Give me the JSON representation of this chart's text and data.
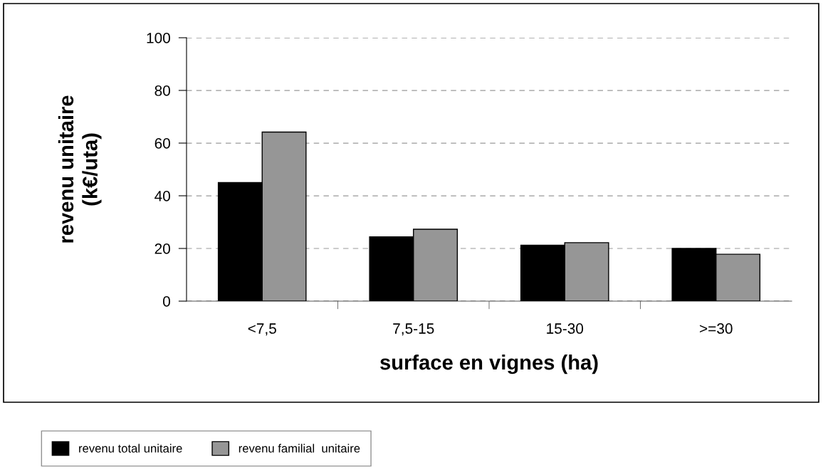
{
  "chart_data": {
    "type": "bar",
    "xlabel": "surface en vignes (ha)",
    "ylabel": "revenu unitaire\n(k€/uta)",
    "categories": [
      "<7,5",
      "7,5-15",
      "15-30",
      ">=30"
    ],
    "series": [
      {
        "name": "revenu total unitaire",
        "color": "#000000",
        "values": [
          45,
          24.4,
          21.2,
          20
        ]
      },
      {
        "name": "revenu familial  unitaire",
        "color": "#969696",
        "values": [
          64.2,
          27.3,
          22.2,
          17.8
        ]
      }
    ],
    "ylim": [
      0,
      100
    ],
    "yticks": [
      0,
      20,
      40,
      60,
      80,
      100
    ],
    "grid": "y",
    "legend": "bottom"
  }
}
